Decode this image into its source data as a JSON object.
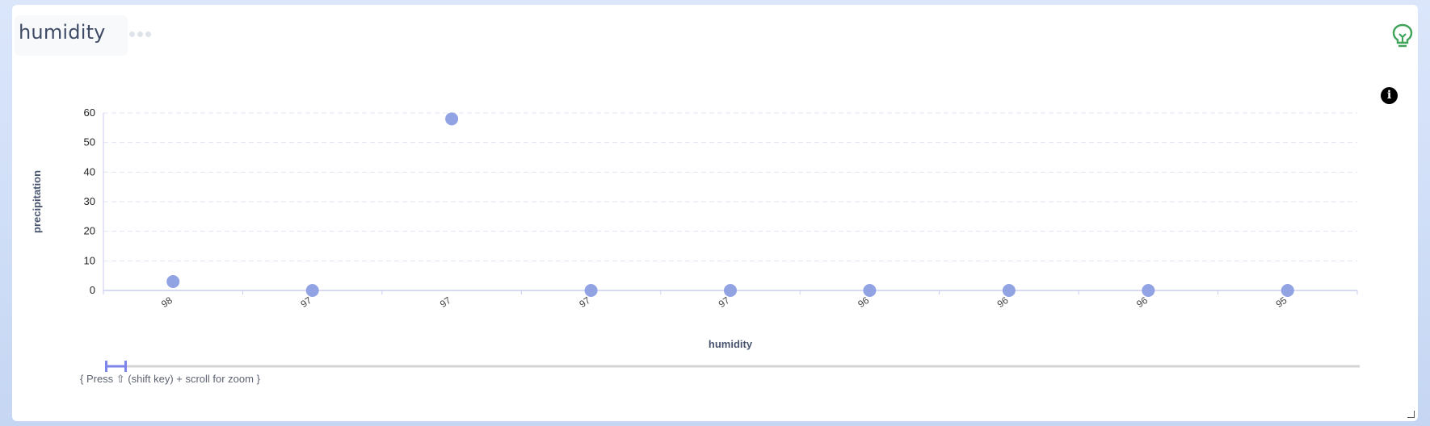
{
  "card": {
    "title": "humidity",
    "menu_icon": "more-dots-icon",
    "insight_icon": "lightbulb-icon",
    "info_icon": "info-icon",
    "info_label": "i"
  },
  "zoom_hint": "{ Press ⇧ (shift key) + scroll for zoom }",
  "colors": {
    "point": "#8c9ee2",
    "grid": "#e3e6f3",
    "axis": "#c9cdf0",
    "bulb": "#3fa35a",
    "slider": "#7d85ea"
  },
  "chart_data": {
    "type": "scatter",
    "xlabel": "humidity",
    "ylabel": "precipitation",
    "ylim": [
      0,
      60
    ],
    "yticks": [
      0,
      10,
      20,
      30,
      40,
      50,
      60
    ],
    "grid": true,
    "categories": [
      "98",
      "97",
      "97",
      "97",
      "97",
      "96",
      "96",
      "96",
      "95"
    ],
    "values": [
      3,
      0,
      58,
      0,
      0,
      0,
      0,
      0,
      0
    ]
  }
}
